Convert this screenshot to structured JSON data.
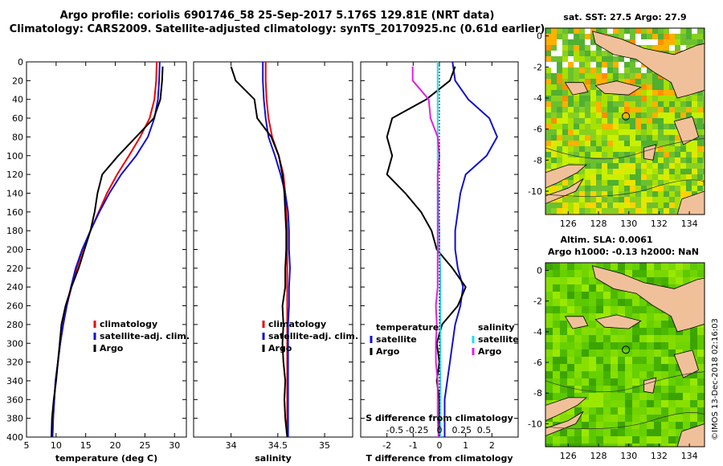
{
  "title_line1": "Argo profile: coriolis 6901746_58 25-Sep-2017 5.176S 129.81E (NRT data)",
  "title_line2": "Climatology: CARS2009. Satellite-adjusted climatology: synTS_20170925.nc (0.61d earlier)",
  "watermark": "©IMOS 13-Dec-2018 02:16:03",
  "colors": {
    "climatology": "#ee0000",
    "satellite": "#1111cc",
    "argo": "#000000",
    "salinity_satellite": "#22ddee",
    "salinity_argo": "#dd22dd",
    "land": "#f0c09a"
  },
  "chart_data": [
    {
      "id": "temperature",
      "type": "line",
      "xlabel": "temperature (deg C)",
      "ylabel": "",
      "xlim": [
        5,
        32
      ],
      "ylim": [
        400,
        0
      ],
      "xticks": [
        5,
        10,
        15,
        20,
        25,
        30
      ],
      "yticks": [
        0,
        20,
        40,
        60,
        80,
        100,
        120,
        140,
        160,
        180,
        200,
        220,
        240,
        260,
        280,
        300,
        320,
        340,
        360,
        380,
        400
      ],
      "legend": [
        "climatology",
        "satellite-adj. clim.",
        "Argo"
      ],
      "series": [
        {
          "name": "climatology",
          "color": "#ee0000",
          "x": [
            27.0,
            26.9,
            26.6,
            25.8,
            24.2,
            22.3,
            20.3,
            18.6,
            17.2,
            15.8,
            14.5,
            13.5,
            12.6,
            11.8,
            11.2,
            10.7,
            10.3,
            9.9,
            9.7,
            9.5,
            9.4
          ],
          "y": [
            0,
            20,
            40,
            60,
            80,
            100,
            120,
            140,
            160,
            180,
            200,
            220,
            240,
            260,
            280,
            300,
            320,
            340,
            360,
            380,
            400
          ]
        },
        {
          "name": "satellite-adj. clim.",
          "color": "#1111cc",
          "x": [
            27.5,
            27.4,
            27.2,
            26.6,
            25.5,
            23.5,
            21.0,
            19.0,
            17.3,
            15.8,
            14.4,
            13.3,
            12.5,
            11.8,
            11.2,
            10.7,
            10.3,
            9.9,
            9.7,
            9.5,
            9.4
          ],
          "y": [
            0,
            20,
            40,
            60,
            80,
            100,
            120,
            140,
            160,
            180,
            200,
            220,
            240,
            260,
            280,
            300,
            320,
            340,
            360,
            380,
            400
          ]
        },
        {
          "name": "Argo",
          "color": "#000000",
          "x": [
            28.0,
            27.9,
            27.6,
            26.5,
            23.5,
            20.5,
            17.8,
            17.0,
            16.5,
            15.8,
            14.8,
            13.8,
            12.6,
            11.6,
            10.9,
            10.6,
            10.3,
            10.0,
            9.6,
            9.3,
            9.2
          ],
          "y": [
            5,
            20,
            40,
            60,
            80,
            100,
            120,
            140,
            160,
            180,
            200,
            220,
            240,
            260,
            280,
            300,
            320,
            340,
            360,
            380,
            400
          ]
        }
      ]
    },
    {
      "id": "salinity",
      "type": "line",
      "xlabel": "salinity",
      "ylabel": "",
      "xlim": [
        33.6,
        35.3
      ],
      "ylim": [
        400,
        0
      ],
      "xticks": [
        34,
        34.5,
        35
      ],
      "xtick_labels": [
        "34",
        "34.5",
        "35"
      ],
      "legend": [
        "climatology",
        "satellite-adj. clim.",
        "Argo"
      ],
      "series": [
        {
          "name": "climatology",
          "color": "#ee0000",
          "x": [
            34.37,
            34.37,
            34.38,
            34.4,
            34.44,
            34.51,
            34.56,
            34.58,
            34.59,
            34.6,
            34.6,
            34.6,
            34.6,
            34.6,
            34.6,
            34.6,
            34.6,
            34.6,
            34.6,
            34.6,
            34.6
          ],
          "y": [
            0,
            20,
            40,
            60,
            80,
            100,
            120,
            140,
            160,
            180,
            200,
            220,
            240,
            260,
            280,
            300,
            320,
            340,
            360,
            380,
            400
          ]
        },
        {
          "name": "satellite-adj. clim.",
          "color": "#1111cc",
          "x": [
            34.34,
            34.34,
            34.35,
            34.37,
            34.4,
            34.47,
            34.53,
            34.58,
            34.61,
            34.62,
            34.62,
            34.63,
            34.62,
            34.62,
            34.61,
            34.61,
            34.61,
            34.61,
            34.61,
            34.61,
            34.61
          ],
          "y": [
            0,
            20,
            40,
            60,
            80,
            100,
            120,
            140,
            160,
            180,
            200,
            220,
            240,
            260,
            280,
            300,
            320,
            340,
            360,
            380,
            400
          ]
        },
        {
          "name": "Argo",
          "color": "#000000",
          "x": [
            34.0,
            34.05,
            34.25,
            34.28,
            34.43,
            34.51,
            34.55,
            34.57,
            34.58,
            34.59,
            34.59,
            34.58,
            34.58,
            34.55,
            34.56,
            34.55,
            34.56,
            34.58,
            34.57,
            34.58,
            34.6
          ],
          "y": [
            5,
            20,
            40,
            60,
            80,
            100,
            120,
            140,
            160,
            180,
            200,
            220,
            240,
            260,
            280,
            300,
            320,
            340,
            360,
            380,
            400
          ]
        }
      ]
    },
    {
      "id": "difference",
      "type": "line",
      "xlabel": "T difference from climatology",
      "top_xlabel": "S difference from climatology",
      "xlim": [
        -3.0,
        3.0
      ],
      "ylim": [
        400,
        0
      ],
      "xticks": [
        -2,
        -1,
        0,
        1,
        2
      ],
      "top_xticks": [
        -0.5,
        -0.25,
        0,
        0.25,
        0.5
      ],
      "top_xtick_labels": [
        "-0.5",
        "-0.25",
        "0",
        "0.25",
        "0.5"
      ],
      "legend_left_title": "temperature",
      "legend_right_title": "salinity",
      "legend_left": [
        "satellite",
        "Argo"
      ],
      "legend_right": [
        "satellite",
        "Argo"
      ],
      "series": [
        {
          "name": "T satellite",
          "color": "#1111cc",
          "x": [
            0.5,
            0.6,
            1.1,
            1.9,
            2.2,
            1.8,
            1.0,
            0.8,
            0.7,
            0.6,
            0.6,
            0.7,
            0.9,
            0.8,
            0.6,
            0.5,
            0.4,
            0.3,
            0.2,
            0.2,
            0.2
          ],
          "y": [
            0,
            20,
            40,
            60,
            80,
            100,
            120,
            140,
            160,
            180,
            200,
            220,
            240,
            260,
            280,
            300,
            320,
            340,
            360,
            380,
            400
          ]
        },
        {
          "name": "T Argo",
          "color": "#000000",
          "x": [
            0.6,
            0.4,
            -0.5,
            -1.8,
            -2.0,
            -1.8,
            -2.0,
            -1.3,
            -0.7,
            -0.3,
            -0.1,
            0.5,
            1.0,
            0.7,
            0.1,
            -0.1,
            0.0,
            -0.1,
            0.0,
            0.0,
            0.0
          ],
          "y": [
            5,
            20,
            40,
            60,
            80,
            100,
            120,
            140,
            160,
            180,
            200,
            220,
            240,
            260,
            280,
            300,
            320,
            340,
            360,
            380,
            400
          ]
        },
        {
          "name": "S satellite",
          "color": "#22ddee",
          "x": [
            -0.02,
            -0.02,
            -0.02,
            -0.02,
            -0.02,
            -0.02,
            -0.02,
            -0.01,
            -0.01,
            0.0,
            0.0,
            0.01,
            0.01,
            0.01,
            0.01,
            0.01,
            0.01,
            0.01,
            0.01,
            0.01,
            0.01
          ],
          "y": [
            0,
            20,
            40,
            60,
            80,
            100,
            120,
            140,
            160,
            180,
            200,
            220,
            240,
            260,
            280,
            300,
            320,
            340,
            360,
            380,
            400
          ]
        },
        {
          "name": "S Argo",
          "color": "#dd22dd",
          "x": [
            -0.3,
            -0.3,
            -0.12,
            -0.1,
            -0.02,
            0.0,
            -0.02,
            -0.02,
            -0.02,
            -0.02,
            -0.02,
            -0.02,
            -0.02,
            -0.04,
            -0.03,
            -0.04,
            -0.04,
            -0.02,
            -0.02,
            -0.02,
            -0.01
          ],
          "y": [
            5,
            20,
            40,
            60,
            80,
            100,
            120,
            140,
            160,
            180,
            200,
            220,
            240,
            260,
            280,
            300,
            320,
            340,
            360,
            380,
            400
          ]
        }
      ]
    },
    {
      "id": "sst_map",
      "type": "heatmap",
      "title": "sat. SST: 27.5 Argo: 27.9",
      "xlim": [
        124.5,
        135
      ],
      "ylim": [
        -11.5,
        0.5
      ],
      "xticks": [
        126,
        128,
        130,
        132,
        134
      ],
      "yticks": [
        0,
        -2,
        -4,
        -6,
        -8,
        -10
      ],
      "argo_position": {
        "lon": 129.81,
        "lat": -5.176
      }
    },
    {
      "id": "sla_map",
      "type": "heatmap",
      "title": "Altim. SLA: 0.0061",
      "subtitle": "Argo h1000: -0.13 h2000: NaN",
      "xlim": [
        124.5,
        135
      ],
      "ylim": [
        -11.5,
        0.5
      ],
      "xticks": [
        126,
        128,
        130,
        132,
        134
      ],
      "yticks": [
        0,
        -2,
        -4,
        -6,
        -8,
        -10
      ],
      "argo_position": {
        "lon": 129.81,
        "lat": -5.176
      }
    }
  ]
}
